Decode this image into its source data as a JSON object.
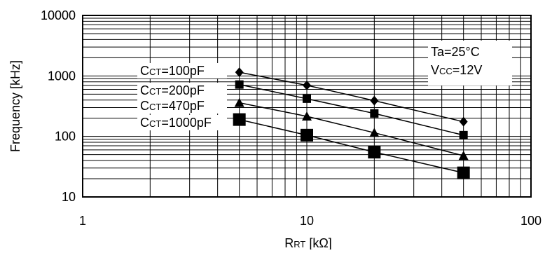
{
  "chart_data": {
    "type": "scatter",
    "xlabel": {
      "main": "R",
      "sub": "RT",
      "unit": " [kΩ]"
    },
    "ylabel": "Frequency [kHz]",
    "x_scale": "log",
    "y_scale": "log",
    "xlim": [
      1,
      100
    ],
    "ylim": [
      10,
      10000
    ],
    "x_ticks": [
      "1",
      "10",
      "100"
    ],
    "y_ticks": [
      "10",
      "100",
      "1000",
      "10000"
    ],
    "grid": true,
    "conditions": [
      {
        "main": "Ta=25°C",
        "sub": "",
        "rest": ""
      },
      {
        "main": "V",
        "sub": "CC",
        "rest": "=12V"
      }
    ],
    "series": [
      {
        "name": {
          "main": "C",
          "sub": "CT",
          "rest": "=100pF"
        },
        "marker": "diamond",
        "x": [
          5,
          10,
          20,
          50
        ],
        "y": [
          1150,
          700,
          390,
          175
        ]
      },
      {
        "name": {
          "main": "C",
          "sub": "CT",
          "rest": "=200pF"
        },
        "marker": "square-small",
        "x": [
          5,
          10,
          20,
          50
        ],
        "y": [
          720,
          420,
          240,
          105
        ]
      },
      {
        "name": {
          "main": "C",
          "sub": "CT",
          "rest": "=470pF"
        },
        "marker": "triangle",
        "x": [
          5,
          10,
          20,
          50
        ],
        "y": [
          360,
          215,
          115,
          48
        ]
      },
      {
        "name": {
          "main": "C",
          "sub": "CT",
          "rest": "=1000pF"
        },
        "marker": "square-large",
        "x": [
          5,
          10,
          20,
          50
        ],
        "y": [
          190,
          105,
          55,
          25
        ]
      }
    ]
  }
}
